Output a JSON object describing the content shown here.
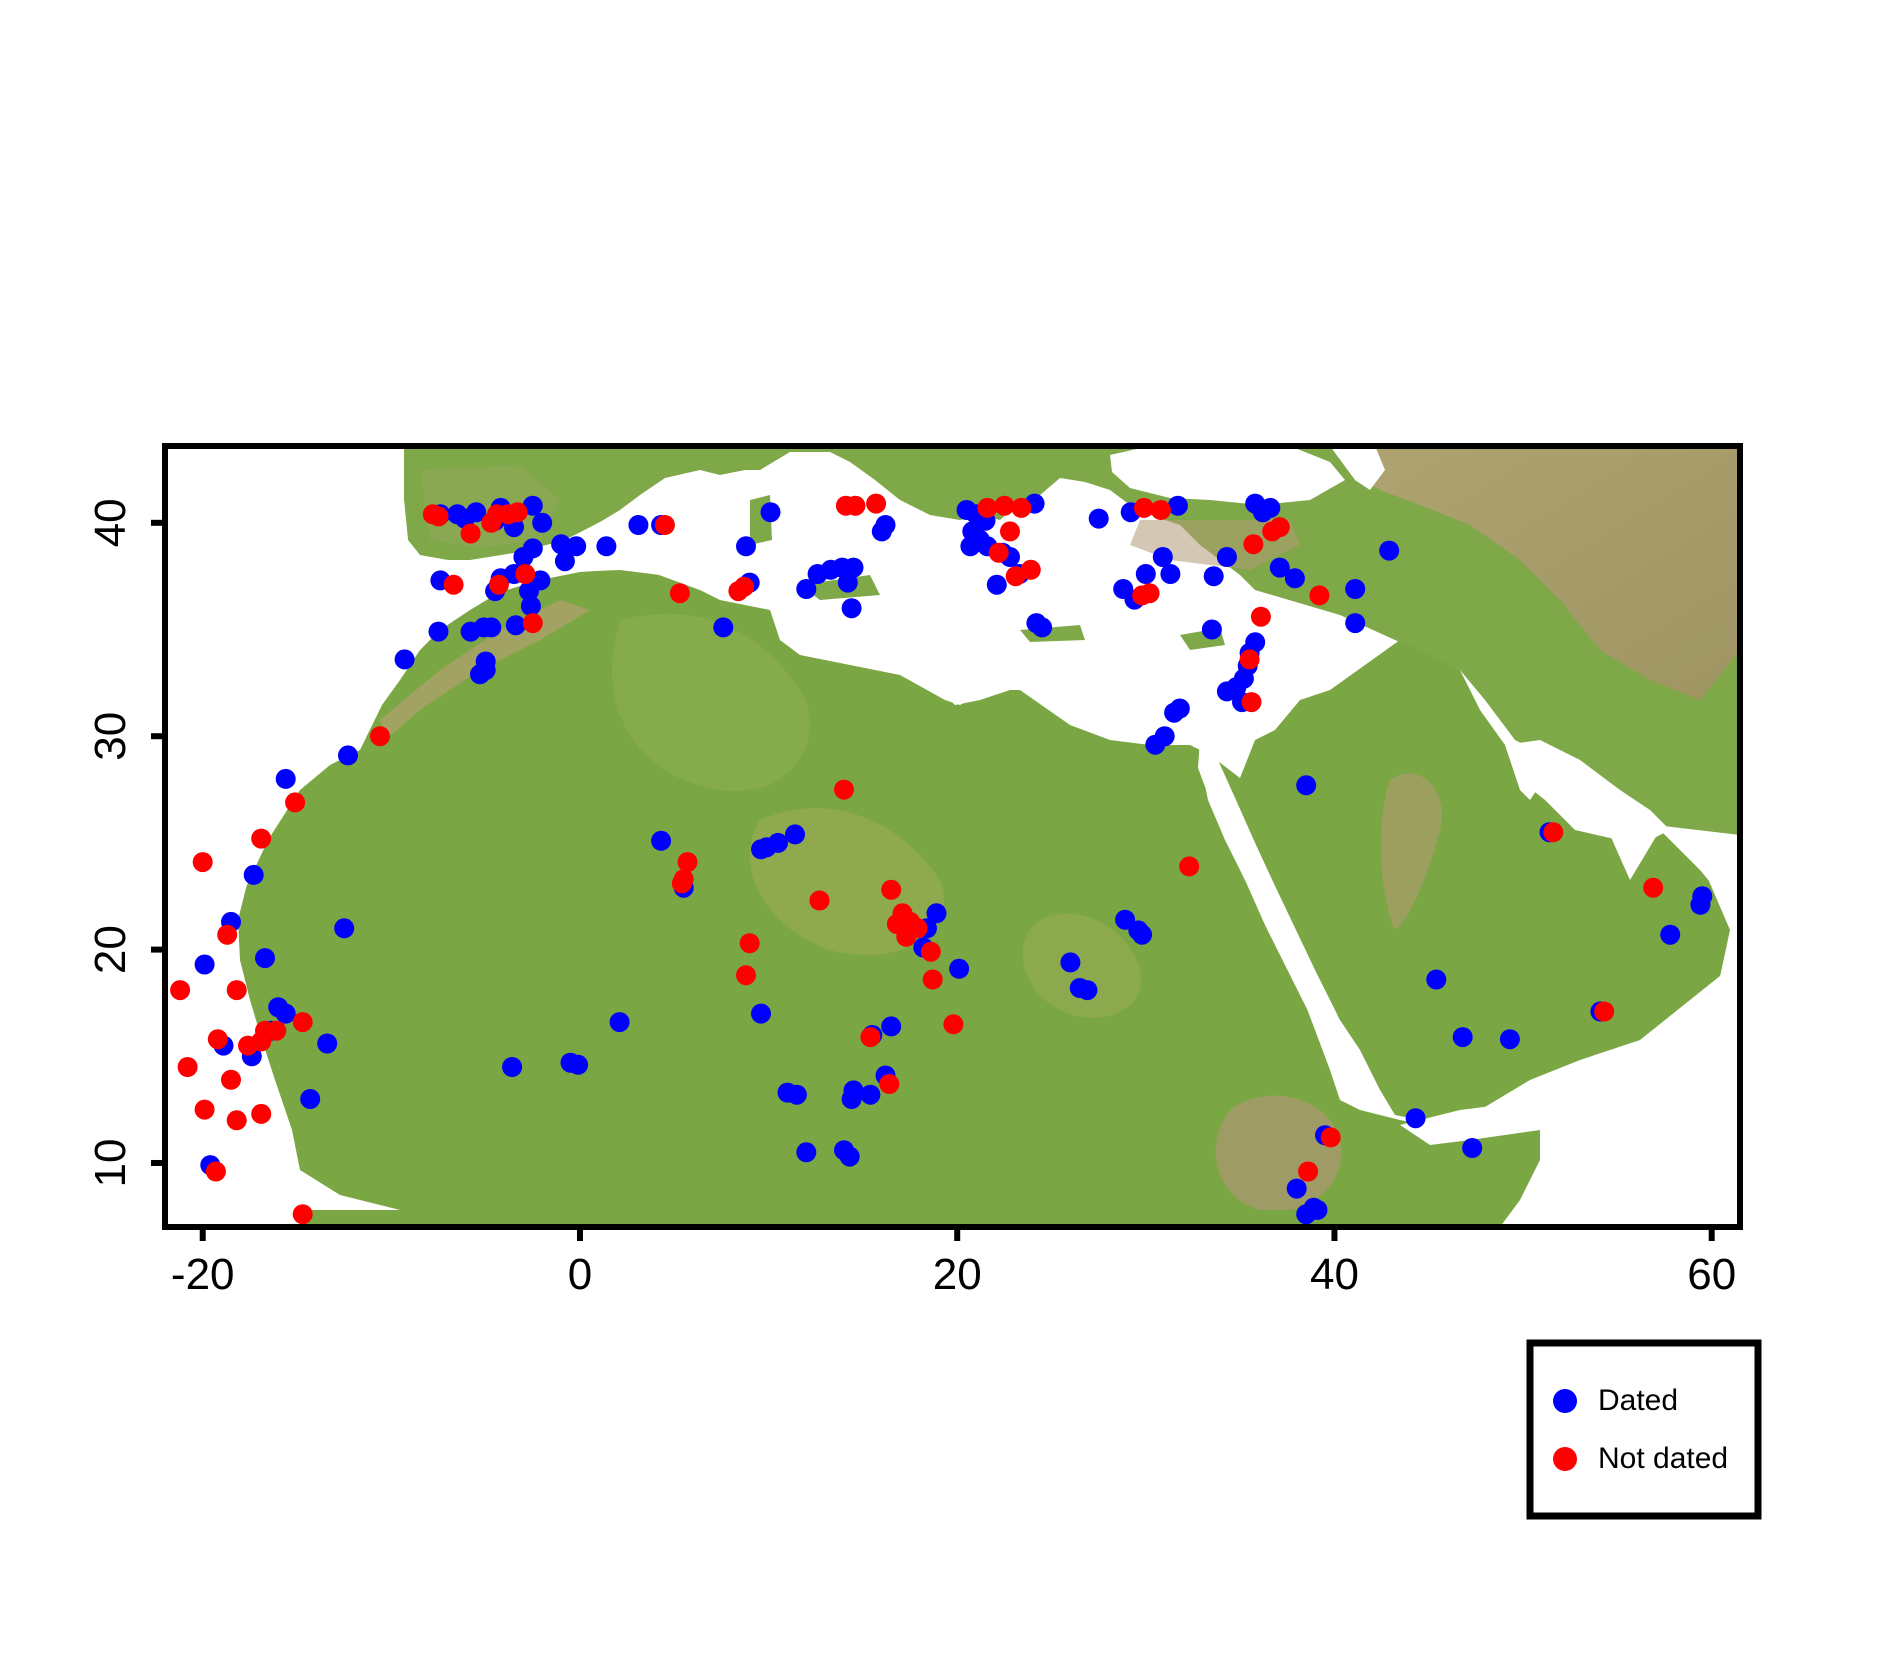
{
  "map": {
    "xlim": [
      -22,
      61.5
    ],
    "ylim": [
      7,
      43.6
    ],
    "x_ticks": [
      -20,
      0,
      20,
      40,
      60
    ],
    "y_ticks": [
      10,
      20,
      30,
      40
    ],
    "x_tick_labels": [
      "-20",
      "0",
      "20",
      "40",
      "60"
    ],
    "y_tick_labels": [
      "10",
      "20",
      "30",
      "40"
    ],
    "background": "shaded relief (green lowlands, tan/brown highlands), white sea",
    "colors": {
      "land": "#7aa845",
      "highland": "#b7a570",
      "mountain": "#b08f74",
      "sea": "#ffffff",
      "frame": "#000000"
    }
  },
  "legend": {
    "placement": "bottom-right",
    "items": [
      {
        "label": "Dated",
        "color": "#0000ff"
      },
      {
        "label": "Not dated",
        "color": "#ff0000"
      }
    ]
  },
  "chart_data": {
    "type": "scatter",
    "xlim": [
      -22,
      61.5
    ],
    "ylim": [
      7,
      43.6
    ],
    "series": [
      {
        "name": "Dated",
        "color": "#0000ff",
        "points": [
          [
            -7.4,
            40.4
          ],
          [
            -6.5,
            40.4
          ],
          [
            -6.1,
            40.2
          ],
          [
            -5.5,
            40.5
          ],
          [
            -4.5,
            40.1
          ],
          [
            -4.2,
            40.7
          ],
          [
            -3.5,
            39.8
          ],
          [
            -2.5,
            40.8
          ],
          [
            -2.0,
            40.0
          ],
          [
            -1.0,
            39.0
          ],
          [
            -0.2,
            38.9
          ],
          [
            -0.8,
            38.2
          ],
          [
            -2.5,
            38.8
          ],
          [
            -3.0,
            38.4
          ],
          [
            -3.5,
            37.6
          ],
          [
            -4.2,
            37.4
          ],
          [
            -4.5,
            36.8
          ],
          [
            -2.1,
            37.3
          ],
          [
            -2.7,
            36.8
          ],
          [
            -2.6,
            36.1
          ],
          [
            -4.7,
            35.1
          ],
          [
            -5.1,
            35.1
          ],
          [
            -3.4,
            35.2
          ],
          [
            -5.8,
            34.9
          ],
          [
            -7.5,
            34.9
          ],
          [
            -9.3,
            33.6
          ],
          [
            -5.0,
            33.5
          ],
          [
            -5.0,
            33.1
          ],
          [
            -5.3,
            32.9
          ],
          [
            -7.4,
            37.3
          ],
          [
            1.4,
            38.9
          ],
          [
            3.1,
            39.9
          ],
          [
            4.3,
            39.9
          ],
          [
            7.6,
            35.1
          ],
          [
            8.8,
            38.9
          ],
          [
            9.0,
            37.2
          ],
          [
            10.1,
            40.5
          ],
          [
            12.0,
            36.9
          ],
          [
            12.6,
            37.6
          ],
          [
            13.3,
            37.8
          ],
          [
            13.9,
            37.9
          ],
          [
            14.5,
            37.9
          ],
          [
            14.2,
            37.2
          ],
          [
            14.4,
            36.0
          ],
          [
            16.0,
            39.6
          ],
          [
            16.2,
            39.9
          ],
          [
            20.5,
            40.6
          ],
          [
            21.0,
            40.4
          ],
          [
            21.5,
            40.1
          ],
          [
            20.8,
            39.6
          ],
          [
            21.2,
            39.2
          ],
          [
            21.6,
            38.9
          ],
          [
            20.7,
            38.9
          ],
          [
            22.4,
            38.6
          ],
          [
            22.8,
            38.4
          ],
          [
            22.1,
            37.1
          ],
          [
            23.3,
            37.6
          ],
          [
            24.1,
            40.9
          ],
          [
            24.2,
            35.3
          ],
          [
            24.5,
            35.1
          ],
          [
            27.5,
            40.2
          ],
          [
            29.2,
            40.5
          ],
          [
            30.0,
            37.6
          ],
          [
            30.9,
            38.4
          ],
          [
            31.3,
            37.6
          ],
          [
            31.7,
            40.8
          ],
          [
            28.8,
            36.9
          ],
          [
            29.4,
            36.4
          ],
          [
            33.6,
            37.5
          ],
          [
            34.3,
            38.4
          ],
          [
            35.8,
            40.9
          ],
          [
            36.2,
            40.5
          ],
          [
            36.6,
            40.7
          ],
          [
            37.1,
            37.9
          ],
          [
            37.9,
            37.4
          ],
          [
            41.1,
            36.9
          ],
          [
            41.1,
            35.3
          ],
          [
            42.9,
            38.7
          ],
          [
            35.8,
            34.4
          ],
          [
            35.5,
            33.9
          ],
          [
            35.4,
            33.3
          ],
          [
            35.2,
            32.7
          ],
          [
            34.8,
            32.3
          ],
          [
            34.3,
            32.1
          ],
          [
            35.1,
            31.6
          ],
          [
            33.5,
            35.0
          ],
          [
            31.8,
            31.3
          ],
          [
            31.5,
            31.1
          ],
          [
            31.0,
            30.0
          ],
          [
            30.5,
            29.6
          ],
          [
            38.5,
            27.7
          ],
          [
            45.4,
            18.6
          ],
          [
            46.8,
            15.9
          ],
          [
            49.3,
            15.8
          ],
          [
            44.3,
            12.1
          ],
          [
            47.3,
            10.7
          ],
          [
            51.4,
            25.5
          ],
          [
            54.1,
            17.1
          ],
          [
            57.8,
            20.7
          ],
          [
            59.5,
            22.5
          ],
          [
            59.4,
            22.1
          ],
          [
            39.5,
            11.3
          ],
          [
            38.0,
            8.8
          ],
          [
            38.5,
            7.6
          ],
          [
            38.9,
            7.9
          ],
          [
            39.1,
            7.8
          ],
          [
            28.9,
            21.4
          ],
          [
            29.6,
            20.9
          ],
          [
            29.8,
            20.7
          ],
          [
            26.0,
            19.4
          ],
          [
            26.5,
            18.2
          ],
          [
            26.9,
            18.1
          ],
          [
            20.1,
            19.1
          ],
          [
            18.9,
            21.7
          ],
          [
            18.4,
            21.0
          ],
          [
            18.2,
            20.1
          ],
          [
            16.5,
            16.4
          ],
          [
            15.5,
            16.0
          ],
          [
            16.2,
            14.1
          ],
          [
            15.4,
            13.2
          ],
          [
            14.5,
            13.4
          ],
          [
            14.4,
            13.0
          ],
          [
            14.0,
            10.6
          ],
          [
            14.3,
            10.3
          ],
          [
            12.0,
            10.5
          ],
          [
            11.0,
            13.3
          ],
          [
            11.5,
            13.2
          ],
          [
            9.6,
            17.0
          ],
          [
            11.4,
            25.4
          ],
          [
            10.5,
            25.0
          ],
          [
            9.9,
            24.8
          ],
          [
            9.6,
            24.7
          ],
          [
            5.5,
            22.9
          ],
          [
            4.3,
            25.1
          ],
          [
            2.1,
            16.6
          ],
          [
            -0.5,
            14.7
          ],
          [
            -0.1,
            14.6
          ],
          [
            -3.6,
            14.5
          ],
          [
            -12.5,
            21.0
          ],
          [
            -13.4,
            15.6
          ],
          [
            -14.3,
            13.0
          ],
          [
            -15.6,
            28.0
          ],
          [
            -12.3,
            29.1
          ],
          [
            -17.3,
            23.5
          ],
          [
            -18.5,
            21.3
          ],
          [
            -18.9,
            15.5
          ],
          [
            -17.4,
            15.0
          ],
          [
            -16.4,
            16.2
          ],
          [
            -15.6,
            17.0
          ],
          [
            -16.0,
            17.3
          ],
          [
            -16.7,
            19.6
          ],
          [
            -19.9,
            19.3
          ],
          [
            -19.6,
            9.9
          ]
        ]
      },
      {
        "name": "Not dated",
        "color": "#ff0000",
        "points": [
          [
            -7.8,
            40.4
          ],
          [
            -7.5,
            40.3
          ],
          [
            -5.8,
            39.5
          ],
          [
            -4.7,
            40.0
          ],
          [
            -4.4,
            40.4
          ],
          [
            -3.8,
            40.4
          ],
          [
            -3.3,
            40.5
          ],
          [
            -4.3,
            37.1
          ],
          [
            -2.9,
            37.6
          ],
          [
            -6.7,
            37.1
          ],
          [
            -2.5,
            35.3
          ],
          [
            4.5,
            39.9
          ],
          [
            5.3,
            36.7
          ],
          [
            8.4,
            36.8
          ],
          [
            8.7,
            37.0
          ],
          [
            14.1,
            40.8
          ],
          [
            14.6,
            40.8
          ],
          [
            15.7,
            40.9
          ],
          [
            21.6,
            40.7
          ],
          [
            22.5,
            40.8
          ],
          [
            23.4,
            40.7
          ],
          [
            22.8,
            39.6
          ],
          [
            22.2,
            38.6
          ],
          [
            23.1,
            37.5
          ],
          [
            23.9,
            37.8
          ],
          [
            29.8,
            36.6
          ],
          [
            30.2,
            36.7
          ],
          [
            29.9,
            40.7
          ],
          [
            30.8,
            40.6
          ],
          [
            35.5,
            33.6
          ],
          [
            35.6,
            31.6
          ],
          [
            36.1,
            35.6
          ],
          [
            35.7,
            39.0
          ],
          [
            36.7,
            39.6
          ],
          [
            37.1,
            39.8
          ],
          [
            39.2,
            36.6
          ],
          [
            51.6,
            25.5
          ],
          [
            56.9,
            22.9
          ],
          [
            54.3,
            17.1
          ],
          [
            39.8,
            11.2
          ],
          [
            38.6,
            9.6
          ],
          [
            32.3,
            23.9
          ],
          [
            19.8,
            16.5
          ],
          [
            18.7,
            18.6
          ],
          [
            18.6,
            19.9
          ],
          [
            17.3,
            20.6
          ],
          [
            16.8,
            21.2
          ],
          [
            17.1,
            21.7
          ],
          [
            17.5,
            21.3
          ],
          [
            17.9,
            21.0
          ],
          [
            16.5,
            22.8
          ],
          [
            16.4,
            13.7
          ],
          [
            15.4,
            15.9
          ],
          [
            14.0,
            27.5
          ],
          [
            12.7,
            22.3
          ],
          [
            8.8,
            18.8
          ],
          [
            9.0,
            20.3
          ],
          [
            5.5,
            23.3
          ],
          [
            5.7,
            24.1
          ],
          [
            5.4,
            23.1
          ],
          [
            -10.6,
            30.0
          ],
          [
            -15.1,
            26.9
          ],
          [
            -16.9,
            25.2
          ],
          [
            -20.0,
            24.1
          ],
          [
            -18.7,
            20.7
          ],
          [
            -18.2,
            18.1
          ],
          [
            -21.2,
            18.1
          ],
          [
            -20.8,
            14.5
          ],
          [
            -19.9,
            12.5
          ],
          [
            -19.2,
            15.8
          ],
          [
            -18.5,
            13.9
          ],
          [
            -18.2,
            12.0
          ],
          [
            -17.6,
            15.5
          ],
          [
            -16.9,
            15.7
          ],
          [
            -16.7,
            16.2
          ],
          [
            -16.1,
            16.2
          ],
          [
            -14.7,
            16.6
          ],
          [
            -16.9,
            12.3
          ],
          [
            -19.3,
            9.6
          ],
          [
            -14.7,
            7.6
          ]
        ]
      }
    ]
  }
}
